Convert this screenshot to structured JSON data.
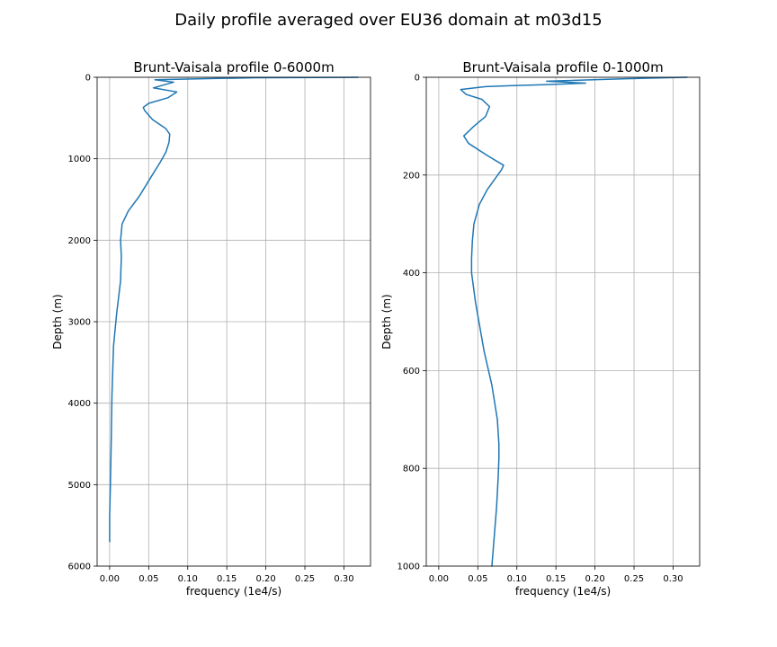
{
  "figure": {
    "title": "Daily profile averaged over EU36 domain at m03d15"
  },
  "colors": {
    "line": "#1f77b4",
    "grid": "#b0b0b0",
    "background": "#ffffff"
  },
  "chart_data": [
    {
      "type": "line",
      "title": "Brunt-Vaisala profile 0-6000m",
      "xlabel": "frequency (1e4/s)",
      "ylabel": "Depth (m)",
      "xlim": [
        -0.016,
        0.334
      ],
      "ylim": [
        6000,
        0
      ],
      "y_inverted": true,
      "grid": true,
      "xticks": [
        0.0,
        0.05,
        0.1,
        0.15,
        0.2,
        0.25,
        0.3
      ],
      "xtick_labels": [
        "0.00",
        "0.05",
        "0.10",
        "0.15",
        "0.20",
        "0.25",
        "0.30"
      ],
      "yticks": [
        0,
        1000,
        2000,
        3000,
        4000,
        5000,
        6000
      ],
      "ytick_labels": [
        "0",
        "1000",
        "2000",
        "3000",
        "4000",
        "5000",
        "6000"
      ],
      "series": [
        {
          "x": [
            0.318,
            0.188,
            0.058,
            0.082,
            0.056,
            0.086,
            0.075,
            0.05,
            0.043,
            0.045,
            0.055,
            0.072,
            0.077,
            0.076,
            0.072,
            0.065,
            0.052,
            0.038,
            0.024,
            0.016,
            0.014,
            0.015,
            0.014,
            0.009,
            0.005,
            0.003,
            0.002,
            0.001,
            0.0,
            0.0
          ],
          "y": [
            0,
            5,
            30,
            60,
            130,
            180,
            250,
            320,
            370,
            410,
            520,
            630,
            700,
            800,
            920,
            1040,
            1240,
            1460,
            1640,
            1800,
            2000,
            2200,
            2500,
            2900,
            3300,
            3900,
            4500,
            5000,
            5400,
            5700
          ]
        }
      ]
    },
    {
      "type": "line",
      "title": "Brunt-Vaisala profile 0-1000m",
      "xlabel": "frequency (1e4/s)",
      "ylabel": "Depth (m)",
      "xlim": [
        -0.016,
        0.334
      ],
      "ylim": [
        1000,
        0
      ],
      "y_inverted": true,
      "grid": true,
      "xticks": [
        0.0,
        0.05,
        0.1,
        0.15,
        0.2,
        0.25,
        0.3
      ],
      "xtick_labels": [
        "0.00",
        "0.05",
        "0.10",
        "0.15",
        "0.20",
        "0.25",
        "0.30"
      ],
      "yticks": [
        0,
        200,
        400,
        600,
        800,
        1000
      ],
      "ytick_labels": [
        "0",
        "200",
        "400",
        "600",
        "800",
        "1000"
      ],
      "series": [
        {
          "x": [
            0.318,
            0.24,
            0.138,
            0.188,
            0.14,
            0.095,
            0.06,
            0.028,
            0.035,
            0.055,
            0.065,
            0.06,
            0.045,
            0.032,
            0.038,
            0.062,
            0.083,
            0.08,
            0.062,
            0.052,
            0.045,
            0.043,
            0.042,
            0.042,
            0.047,
            0.058,
            0.068,
            0.075,
            0.077,
            0.077,
            0.076,
            0.074,
            0.072,
            0.07,
            0.068
          ],
          "y": [
            0,
            3,
            8,
            12,
            15,
            17,
            19,
            25,
            35,
            45,
            60,
            80,
            100,
            120,
            135,
            160,
            180,
            190,
            230,
            260,
            300,
            335,
            370,
            400,
            460,
            560,
            630,
            700,
            750,
            780,
            820,
            880,
            920,
            960,
            1000
          ]
        }
      ]
    }
  ]
}
